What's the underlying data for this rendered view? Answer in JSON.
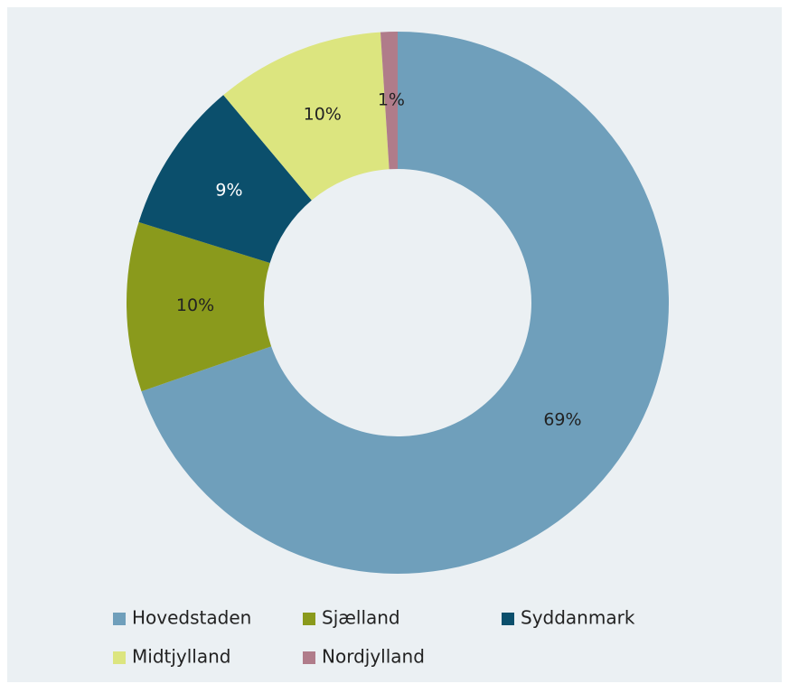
{
  "chart_data": {
    "type": "donut",
    "categories": [
      "Hovedstaden",
      "Sjælland",
      "Syddanmark",
      "Midtjylland",
      "Nordjylland"
    ],
    "values": [
      69,
      10,
      9,
      10,
      1
    ],
    "value_labels": [
      "69%",
      "10%",
      "9%",
      "10%",
      "1%"
    ],
    "colors": [
      "#6f9fbb",
      "#8a9a1c",
      "#0b4f6c",
      "#dce57f",
      "#b07c8a"
    ],
    "legend": "bottom"
  }
}
